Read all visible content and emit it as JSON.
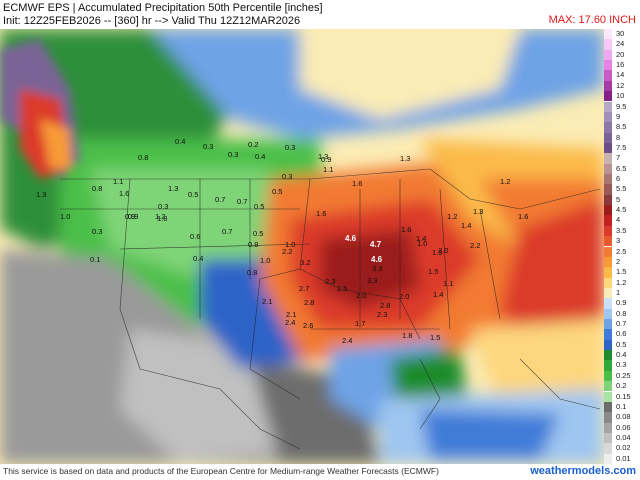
{
  "header": {
    "title_line1": "ECMWF EPS | Accumulated Precipitation 50th Percentile [inches]",
    "title_line2": "Init: 12Z25FEB2026 -- [360] hr --> Valid Thu 12Z12MAR2026",
    "max_label": "MAX: 17.60 INCH"
  },
  "footer": {
    "disclaimer": "This service is based on data and products of the European Centre for Medium-range Weather Forecasts (ECMWF)",
    "brand": "weathermodels.com"
  },
  "legend": {
    "levels": [
      "30",
      "24",
      "20",
      "16",
      "14",
      "12",
      "10",
      "9.5",
      "9",
      "8.5",
      "8",
      "7.5",
      "7",
      "6.5",
      "6",
      "5.5",
      "5",
      "4.5",
      "4",
      "3.5",
      "3",
      "2.5",
      "2",
      "1.5",
      "1.2",
      "1",
      "0.9",
      "0.8",
      "0.7",
      "0.6",
      "0.5",
      "0.4",
      "0.3",
      "0.25",
      "0.2",
      "0.15",
      "0.1",
      "0.08",
      "0.06",
      "0.04",
      "0.02",
      "0.01"
    ],
    "colors": [
      "#fbe8fb",
      "#f7c8f7",
      "#f0a8ef",
      "#e681e6",
      "#c85ac9",
      "#a43aa7",
      "#84208a",
      "#b4a8c8",
      "#9e90b8",
      "#8a78a6",
      "#7a6396",
      "#6b4f86",
      "#c9b2b2",
      "#b99494",
      "#a97676",
      "#9a5858",
      "#8a3a3a",
      "#9b1c1c",
      "#c42222",
      "#dc3a2a",
      "#ea5a2e",
      "#f27a32",
      "#f89a38",
      "#fbba48",
      "#fdd77e",
      "#fbecb5",
      "#c9e0f8",
      "#9fc6f0",
      "#6ea3e6",
      "#3f7cd8",
      "#2e63c7",
      "#1f8c2c",
      "#30a83a",
      "#4cbf48",
      "#7fd477",
      "#a9e3a2",
      "#6d6d6d",
      "#8a8a8a",
      "#a5a5a5",
      "#c0c0c0",
      "#d9d9d9",
      "#eeeeee"
    ]
  },
  "map_labels": [
    {
      "t": "0.4"
    },
    {
      "t": "0.3"
    },
    {
      "t": "0.2"
    },
    {
      "t": "0.3"
    },
    {
      "t": "0.3"
    },
    {
      "t": "0.4"
    },
    {
      "t": "0.3"
    },
    {
      "t": "0.8"
    },
    {
      "t": "1.3"
    },
    {
      "t": "0.8"
    },
    {
      "t": "1.6"
    },
    {
      "t": "1.1"
    },
    {
      "t": "1.3"
    },
    {
      "t": "0.5"
    },
    {
      "t": "0.7"
    },
    {
      "t": "0.5"
    },
    {
      "t": "0.3"
    },
    {
      "t": "0.9"
    },
    {
      "t": "1.2"
    },
    {
      "t": "1.3"
    },
    {
      "t": "1.6"
    },
    {
      "t": "1.3"
    },
    {
      "t": "1.2"
    },
    {
      "t": "1.0"
    },
    {
      "t": "0.9"
    },
    {
      "t": "1.8"
    },
    {
      "t": "0.3"
    },
    {
      "t": "0.6"
    },
    {
      "t": "0.7"
    },
    {
      "t": "0.5"
    },
    {
      "t": "1.0"
    },
    {
      "t": "0.1"
    },
    {
      "t": "0.4"
    },
    {
      "t": "0.8"
    },
    {
      "t": "1.0"
    },
    {
      "t": "0.8"
    },
    {
      "t": "2.2"
    },
    {
      "t": "3.2"
    },
    {
      "t": "1.6"
    },
    {
      "t": "4.6"
    },
    {
      "t": "4.7"
    },
    {
      "t": "4.6"
    },
    {
      "t": "3.3"
    },
    {
      "t": "2.3"
    },
    {
      "t": "2.7"
    },
    {
      "t": "2.1"
    },
    {
      "t": "2.8"
    },
    {
      "t": "2.5"
    },
    {
      "t": "3.3"
    },
    {
      "t": "2.0"
    },
    {
      "t": "2.1"
    },
    {
      "t": "2.4"
    },
    {
      "t": "2.6"
    },
    {
      "t": "1.7"
    },
    {
      "t": "2.3"
    },
    {
      "t": "2.4"
    },
    {
      "t": "2.8"
    },
    {
      "t": "2.0"
    },
    {
      "t": "1.4"
    },
    {
      "t": "1.5"
    },
    {
      "t": "1.1"
    },
    {
      "t": "1.0"
    },
    {
      "t": "1.6"
    },
    {
      "t": "1.4"
    },
    {
      "t": "1.3"
    },
    {
      "t": "2.2"
    },
    {
      "t": "1.4"
    },
    {
      "t": "1.3"
    },
    {
      "t": "1.2"
    },
    {
      "t": "1.6"
    },
    {
      "t": "1.8"
    },
    {
      "t": "1.5"
    },
    {
      "t": "2.0"
    },
    {
      "t": "0.9"
    },
    {
      "t": "1.1"
    },
    {
      "t": "0.7"
    },
    {
      "t": "0.5"
    }
  ]
}
